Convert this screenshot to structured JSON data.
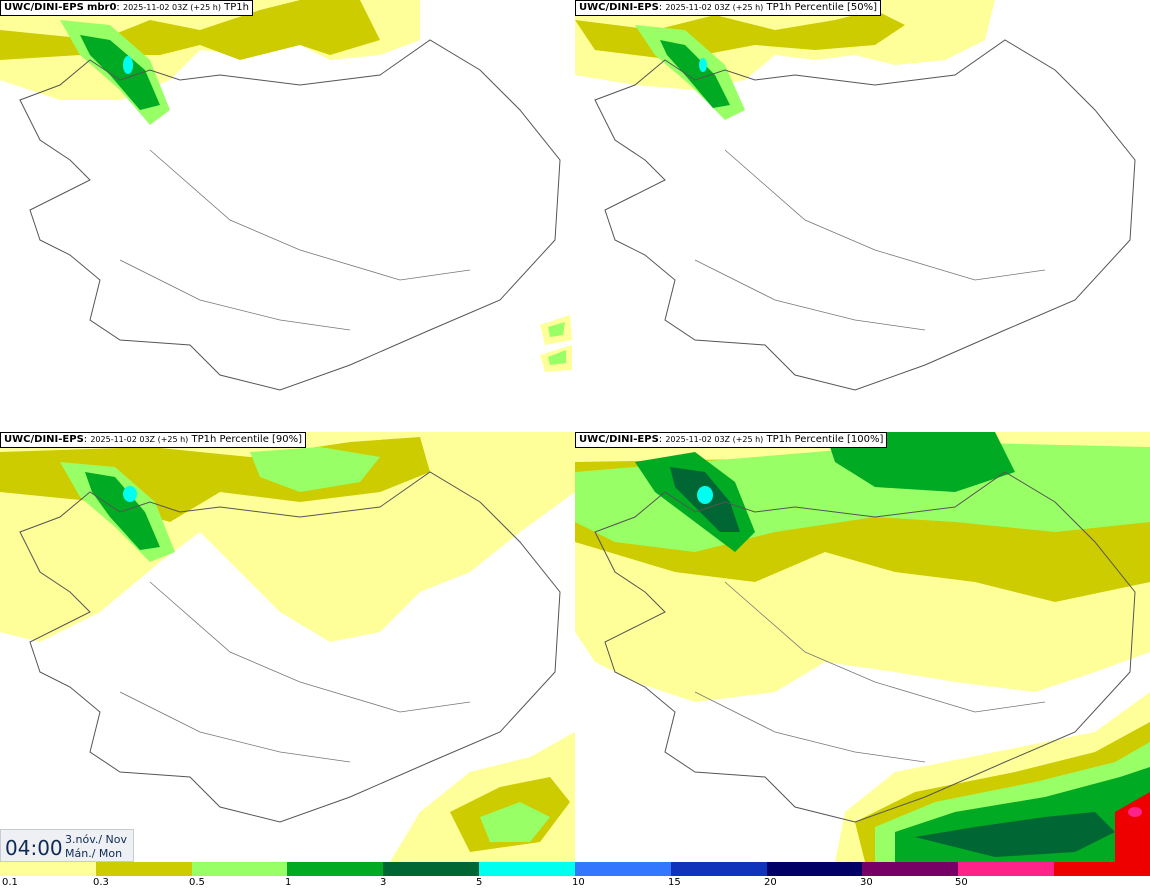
{
  "panels": [
    {
      "model": "UWC/DINI-EPS",
      "member": "mbr0",
      "run": "2025-11-02 03Z (+25 h)",
      "field": "TP1h"
    },
    {
      "model": "UWC/DINI-EPS",
      "member": "",
      "run": "2025-11-02 03Z (+25 h)",
      "field": "TP1h Percentile [50%]"
    },
    {
      "model": "UWC/DINI-EPS",
      "member": "",
      "run": "2025-11-02 03Z (+25 h)",
      "field": "TP1h Percentile [90%]"
    },
    {
      "model": "UWC/DINI-EPS",
      "member": "",
      "run": "2025-11-02 03Z (+25 h)",
      "field": "TP1h Percentile [100%]"
    }
  ],
  "valid_time": {
    "time": "04:00",
    "date_line1": "3.nóv./ Nov",
    "date_line2": "Mán./ Mon"
  },
  "legend": {
    "colors": [
      "#ffff99",
      "#cccc00",
      "#99ff66",
      "#00aa22",
      "#006633",
      "#00ffee",
      "#3377ff",
      "#1133bb",
      "#000066",
      "#770066",
      "#ff2288",
      "#ee0000"
    ],
    "labels": [
      "0.1",
      "0.3",
      "0.5",
      "1",
      "3",
      "5",
      "10",
      "15",
      "20",
      "30",
      "50"
    ]
  }
}
